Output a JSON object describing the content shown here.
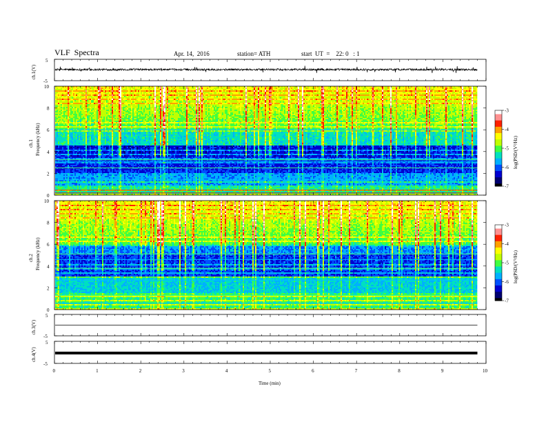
{
  "header": {
    "title": "VLF  Spectra",
    "date": "Apr. 14,  2016",
    "station": "station= ATH",
    "start": "start  UT  =    22: 0   : 1"
  },
  "chart_data": [
    {
      "type": "line",
      "panel": "ch1-waveform",
      "ylabel": "ch.1(V)",
      "ylim": [
        -5,
        5
      ],
      "yticks": [
        "5",
        "-5"
      ],
      "xlim": [
        0,
        10
      ],
      "series_color": "#000000",
      "baseline": 0.2,
      "description_values": {
        "x_end": 9.8
      }
    },
    {
      "type": "heatmap",
      "panel": "ch1-spectrogram",
      "ylabel": "ch.1\nFrequency  (kHz)",
      "ylabel_lines": [
        "ch.1",
        "Frequency  (kHz)"
      ],
      "ylim": [
        0,
        10
      ],
      "yticks": [
        "0",
        "2",
        "4",
        "6",
        "8",
        "10"
      ],
      "xlim": [
        0,
        10
      ],
      "colorbar": {
        "label": "log(PSD/(V²/Hz)",
        "range": [
          -7,
          -3
        ],
        "ticks": [
          "-3",
          "-4",
          "-5",
          "-6",
          "-7"
        ]
      }
    },
    {
      "type": "heatmap",
      "panel": "ch2-spectrogram",
      "ylabel_lines": [
        "ch.2",
        "Frequency  (kHz)"
      ],
      "ylim": [
        0,
        10
      ],
      "yticks": [
        "0",
        "2",
        "4",
        "6",
        "8",
        "10"
      ],
      "xlim": [
        0,
        10
      ],
      "colorbar": {
        "label": "log(PSD/(V²/Hz)",
        "range": [
          -7,
          -3
        ],
        "ticks": [
          "-3",
          "-4",
          "-5",
          "-6",
          "-7"
        ]
      }
    },
    {
      "type": "line",
      "panel": "ch3-waveform",
      "ylabel": "ch.3(V)",
      "ylim": [
        -5,
        5
      ],
      "yticks": [
        "5",
        "-5"
      ],
      "xlim": [
        0,
        10
      ],
      "baseline": 0.0
    },
    {
      "type": "line",
      "panel": "ch4-waveform",
      "ylabel": "ch.4(V)",
      "ylim": [
        -5,
        5
      ],
      "yticks": [
        "5",
        "-5"
      ],
      "xlim": [
        0,
        10
      ],
      "baseline": -0.3,
      "xlabel": "Time  (min)",
      "xticks": [
        "0",
        "1",
        "2",
        "3",
        "4",
        "5",
        "6",
        "7",
        "8",
        "9",
        "10"
      ]
    }
  ],
  "colors": {
    "colormap": [
      "#000000",
      "#000070",
      "#0000d0",
      "#0050ff",
      "#00b0ff",
      "#00e0c0",
      "#40ff40",
      "#c0ff00",
      "#ffff00",
      "#ffa000",
      "#ff2000",
      "#ff9090",
      "#ffffff"
    ]
  }
}
